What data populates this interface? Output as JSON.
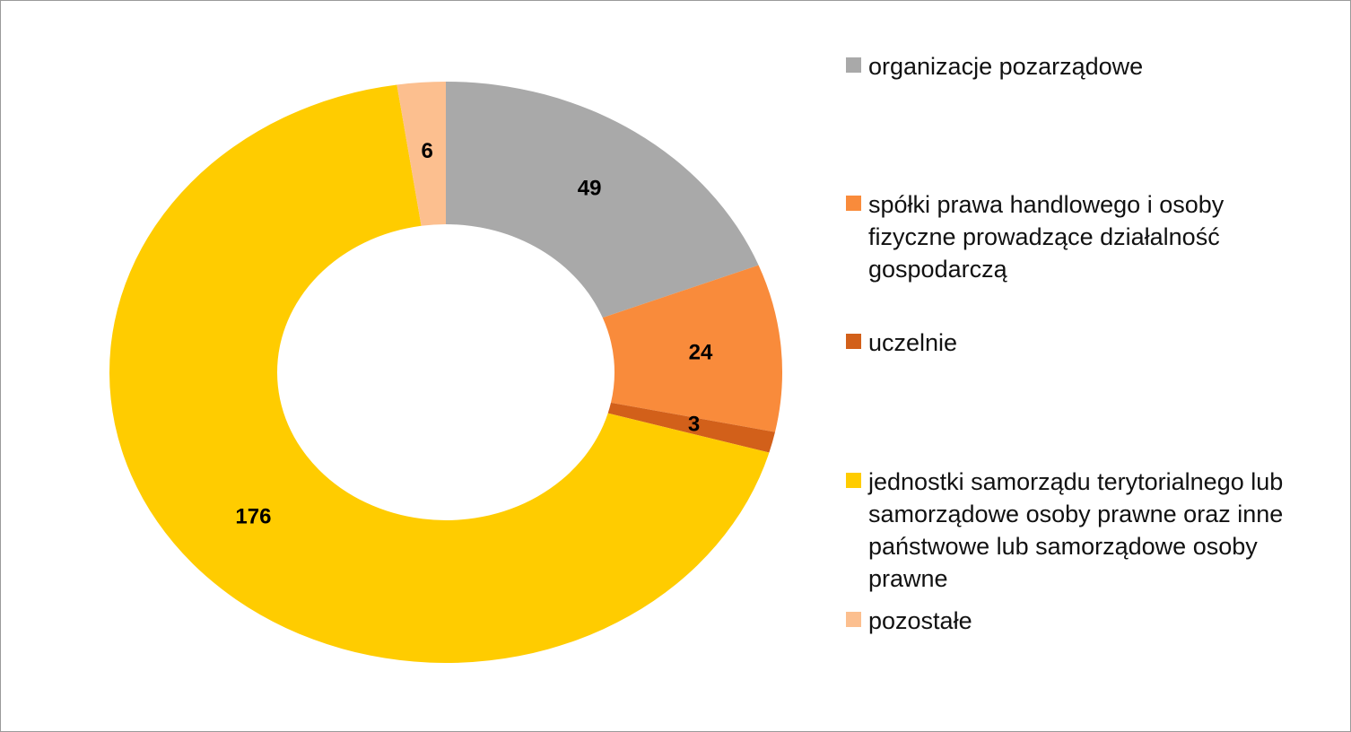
{
  "chart_data": {
    "type": "donut",
    "categories": [
      "organizacje pozarządowe",
      "spółki prawa handlowego i osoby fizyczne prowadzące działalność gospodarczą",
      "uczelnie",
      "jednostki samorządu terytorialnego lub samorządowe osoby prawne oraz inne państwowe lub samorządowe osoby prawne",
      "pozostałe"
    ],
    "values": [
      49,
      24,
      3,
      176,
      6
    ],
    "colors": [
      "#a9a9a9",
      "#f98b3b",
      "#d2601a",
      "#ffcc00",
      "#fcbf8f"
    ],
    "legend": "right"
  }
}
